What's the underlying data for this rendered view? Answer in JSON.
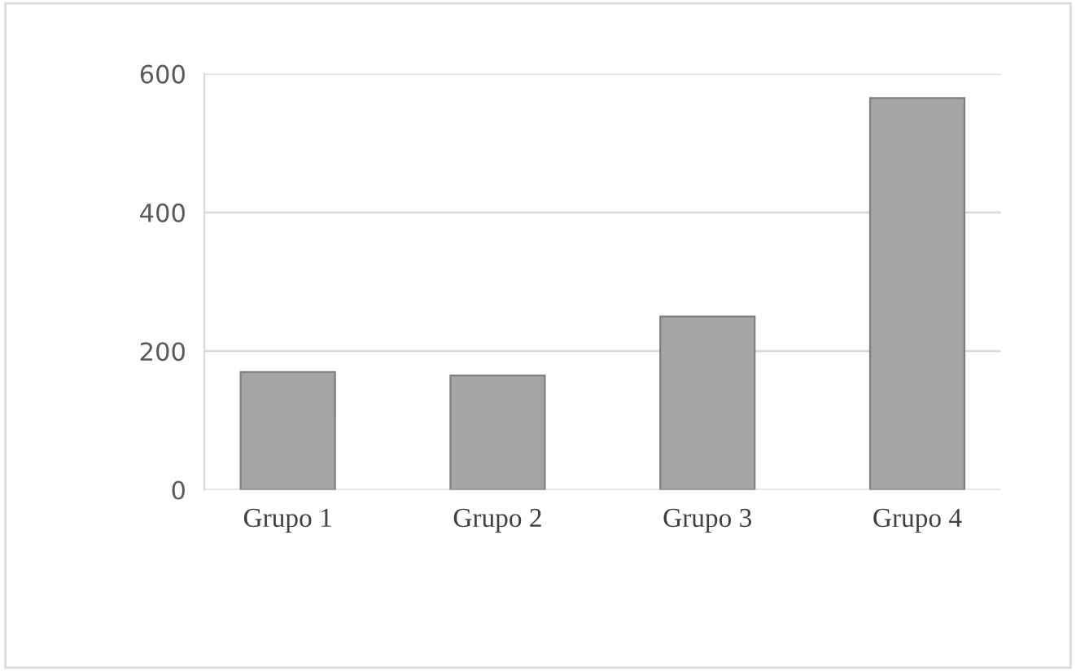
{
  "chart_data": {
    "type": "bar",
    "categories": [
      "Grupo 1",
      "Grupo 2",
      "Grupo 3",
      "Grupo 4"
    ],
    "values": [
      170,
      165,
      250,
      565
    ],
    "color": "#a5a5a5",
    "ylim": [
      0,
      600
    ],
    "yticks": [
      0,
      200,
      400,
      600
    ],
    "grid": "y"
  }
}
